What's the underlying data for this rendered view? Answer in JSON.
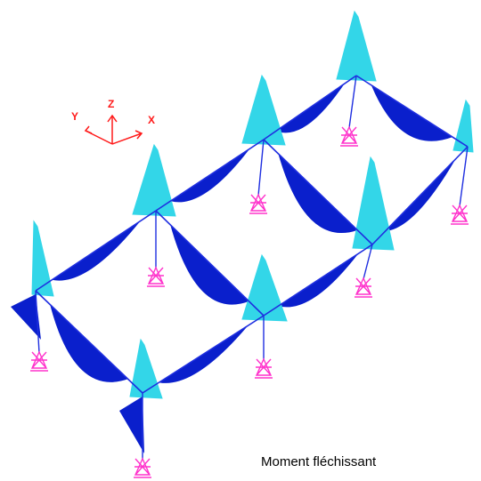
{
  "caption": "Moment fléchissant",
  "axes": {
    "x_label": "X",
    "y_label": "Y",
    "z_label": "Z"
  },
  "colors": {
    "sagging_moment": "#0a1fcc",
    "hogging_moment": "#33d6e8",
    "frame": "#1f2fe0",
    "support": "#ff33cc",
    "axes": "#ff1a1a"
  },
  "icons": {
    "support": "fixed-support-icon",
    "triad": "axis-triad-icon"
  }
}
